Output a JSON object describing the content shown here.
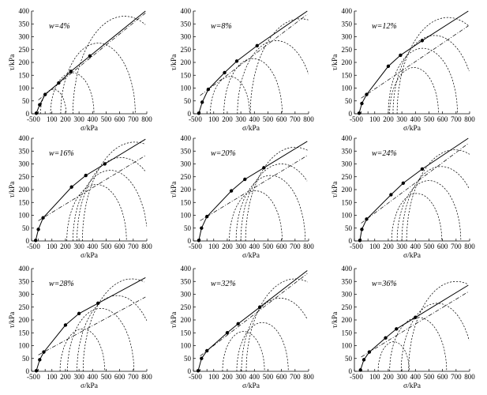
{
  "figure": {
    "xlabel": "σ/kPa",
    "ylabel": "τ/kPa",
    "xticks": [
      -50,
      0,
      50,
      100,
      200,
      300,
      400,
      500,
      600,
      700,
      800
    ],
    "yticks": [
      0,
      50,
      100,
      150,
      200,
      250,
      300,
      350,
      400
    ]
  },
  "chart_data": [
    {
      "type": "scatter",
      "label": "w=4%",
      "xlim": [
        -50,
        800
      ],
      "ylim": [
        0,
        400
      ],
      "xlabel": "σ/kPa",
      "ylabel": "τ/kPa",
      "series": [
        {
          "values": [
            [
              -15,
              2
            ],
            [
              10,
              35
            ],
            [
              50,
              75
            ],
            [
              150,
              120
            ],
            [
              240,
              165
            ],
            [
              380,
              225
            ]
          ]
        }
      ],
      "circles": [
        [
          110,
          95
        ],
        [
          250,
          160
        ],
        [
          440,
          275
        ],
        [
          635,
          380
        ]
      ]
    },
    {
      "type": "scatter",
      "label": "w=8%",
      "xlim": [
        -50,
        800
      ],
      "ylim": [
        0,
        400
      ],
      "xlabel": "σ/kPa",
      "ylabel": "τ/kPa",
      "series": [
        {
          "values": [
            [
              -10,
              2
            ],
            [
              15,
              45
            ],
            [
              60,
              95
            ],
            [
              180,
              160
            ],
            [
              270,
              205
            ],
            [
              420,
              265
            ]
          ]
        }
      ],
      "circles": [
        [
          220,
          145
        ],
        [
          390,
          215
        ],
        [
          560,
          285
        ],
        [
          740,
          370
        ]
      ]
    },
    {
      "type": "scatter",
      "label": "w=12%",
      "xlim": [
        -50,
        800
      ],
      "ylim": [
        0,
        400
      ],
      "xlabel": "σ/kPa",
      "ylabel": "τ/kPa",
      "series": [
        {
          "values": [
            [
              -15,
              2
            ],
            [
              5,
              40
            ],
            [
              40,
              75
            ],
            [
              200,
              185
            ],
            [
              290,
              228
            ],
            [
              450,
              285
            ]
          ]
        }
      ],
      "circles": [
        [
          390,
          180
        ],
        [
          455,
          255
        ],
        [
          540,
          305
        ],
        [
          640,
          375
        ]
      ]
    },
    {
      "type": "scatter",
      "label": "w=16%",
      "xlim": [
        -50,
        800
      ],
      "ylim": [
        0,
        400
      ],
      "xlabel": "σ/kPa",
      "ylabel": "τ/kPa",
      "series": [
        {
          "values": [
            [
              -20,
              2
            ],
            [
              0,
              45
            ],
            [
              35,
              90
            ],
            [
              245,
              210
            ],
            [
              350,
              255
            ],
            [
              490,
              300
            ]
          ]
        }
      ],
      "circles": [
        [
          430,
          220
        ],
        [
          530,
          275
        ],
        [
          610,
          325
        ],
        [
          710,
          385
        ]
      ]
    },
    {
      "type": "scatter",
      "label": "w=20%",
      "xlim": [
        -50,
        800
      ],
      "ylim": [
        0,
        400
      ],
      "xlabel": "σ/kPa",
      "ylabel": "τ/kPa",
      "series": [
        {
          "values": [
            [
              -10,
              2
            ],
            [
              10,
              50
            ],
            [
              50,
              95
            ],
            [
              230,
              195
            ],
            [
              330,
              240
            ],
            [
              470,
              285
            ]
          ]
        }
      ],
      "circles": [
        [
          410,
          195
        ],
        [
          520,
          255
        ],
        [
          600,
          300
        ],
        [
          700,
          365
        ]
      ]
    },
    {
      "type": "scatter",
      "label": "w=24%",
      "xlim": [
        -50,
        800
      ],
      "ylim": [
        0,
        400
      ],
      "xlabel": "σ/kPa",
      "ylabel": "τ/kPa",
      "series": [
        {
          "values": [
            [
              -10,
              2
            ],
            [
              5,
              45
            ],
            [
              40,
              85
            ],
            [
              220,
              180
            ],
            [
              310,
              225
            ],
            [
              450,
              280
            ]
          ]
        }
      ],
      "circles": [
        [
          410,
          185
        ],
        [
          500,
          235
        ],
        [
          590,
          290
        ],
        [
          690,
          355
        ]
      ]
    },
    {
      "type": "scatter",
      "label": "w=28%",
      "xlim": [
        -50,
        800
      ],
      "ylim": [
        0,
        400
      ],
      "xlabel": "σ/kPa",
      "ylabel": "τ/kPa",
      "series": [
        {
          "values": [
            [
              -15,
              2
            ],
            [
              10,
              45
            ],
            [
              40,
              75
            ],
            [
              200,
              180
            ],
            [
              300,
              225
            ],
            [
              440,
              265
            ]
          ]
        }
      ],
      "circles": [
        [
          325,
          165
        ],
        [
          460,
          245
        ],
        [
          580,
          295
        ],
        [
          690,
          360
        ]
      ]
    },
    {
      "type": "scatter",
      "label": "w=32%",
      "xlim": [
        -50,
        800
      ],
      "ylim": [
        0,
        400
      ],
      "xlabel": "σ/kPa",
      "ylabel": "τ/kPa",
      "series": [
        {
          "values": [
            [
              -15,
              2
            ],
            [
              10,
              50
            ],
            [
              50,
              80
            ],
            [
              200,
              150
            ],
            [
              280,
              185
            ],
            [
              440,
              250
            ]
          ]
        }
      ],
      "circles": [
        [
          320,
          155
        ],
        [
          460,
          190
        ],
        [
          590,
          285
        ],
        [
          700,
          360
        ]
      ]
    },
    {
      "type": "scatter",
      "label": "w=36%",
      "xlim": [
        -50,
        800
      ],
      "ylim": [
        0,
        400
      ],
      "xlabel": "σ/kPa",
      "ylabel": "τ/kPa",
      "series": [
        {
          "values": [
            [
              -5,
              5
            ],
            [
              20,
              45
            ],
            [
              60,
              75
            ],
            [
              180,
              130
            ],
            [
              260,
              165
            ],
            [
              400,
              210
            ]
          ]
        }
      ],
      "circles": [
        [
          240,
          115
        ],
        [
          420,
          210
        ],
        [
          560,
          265
        ],
        [
          700,
          350
        ]
      ]
    }
  ]
}
